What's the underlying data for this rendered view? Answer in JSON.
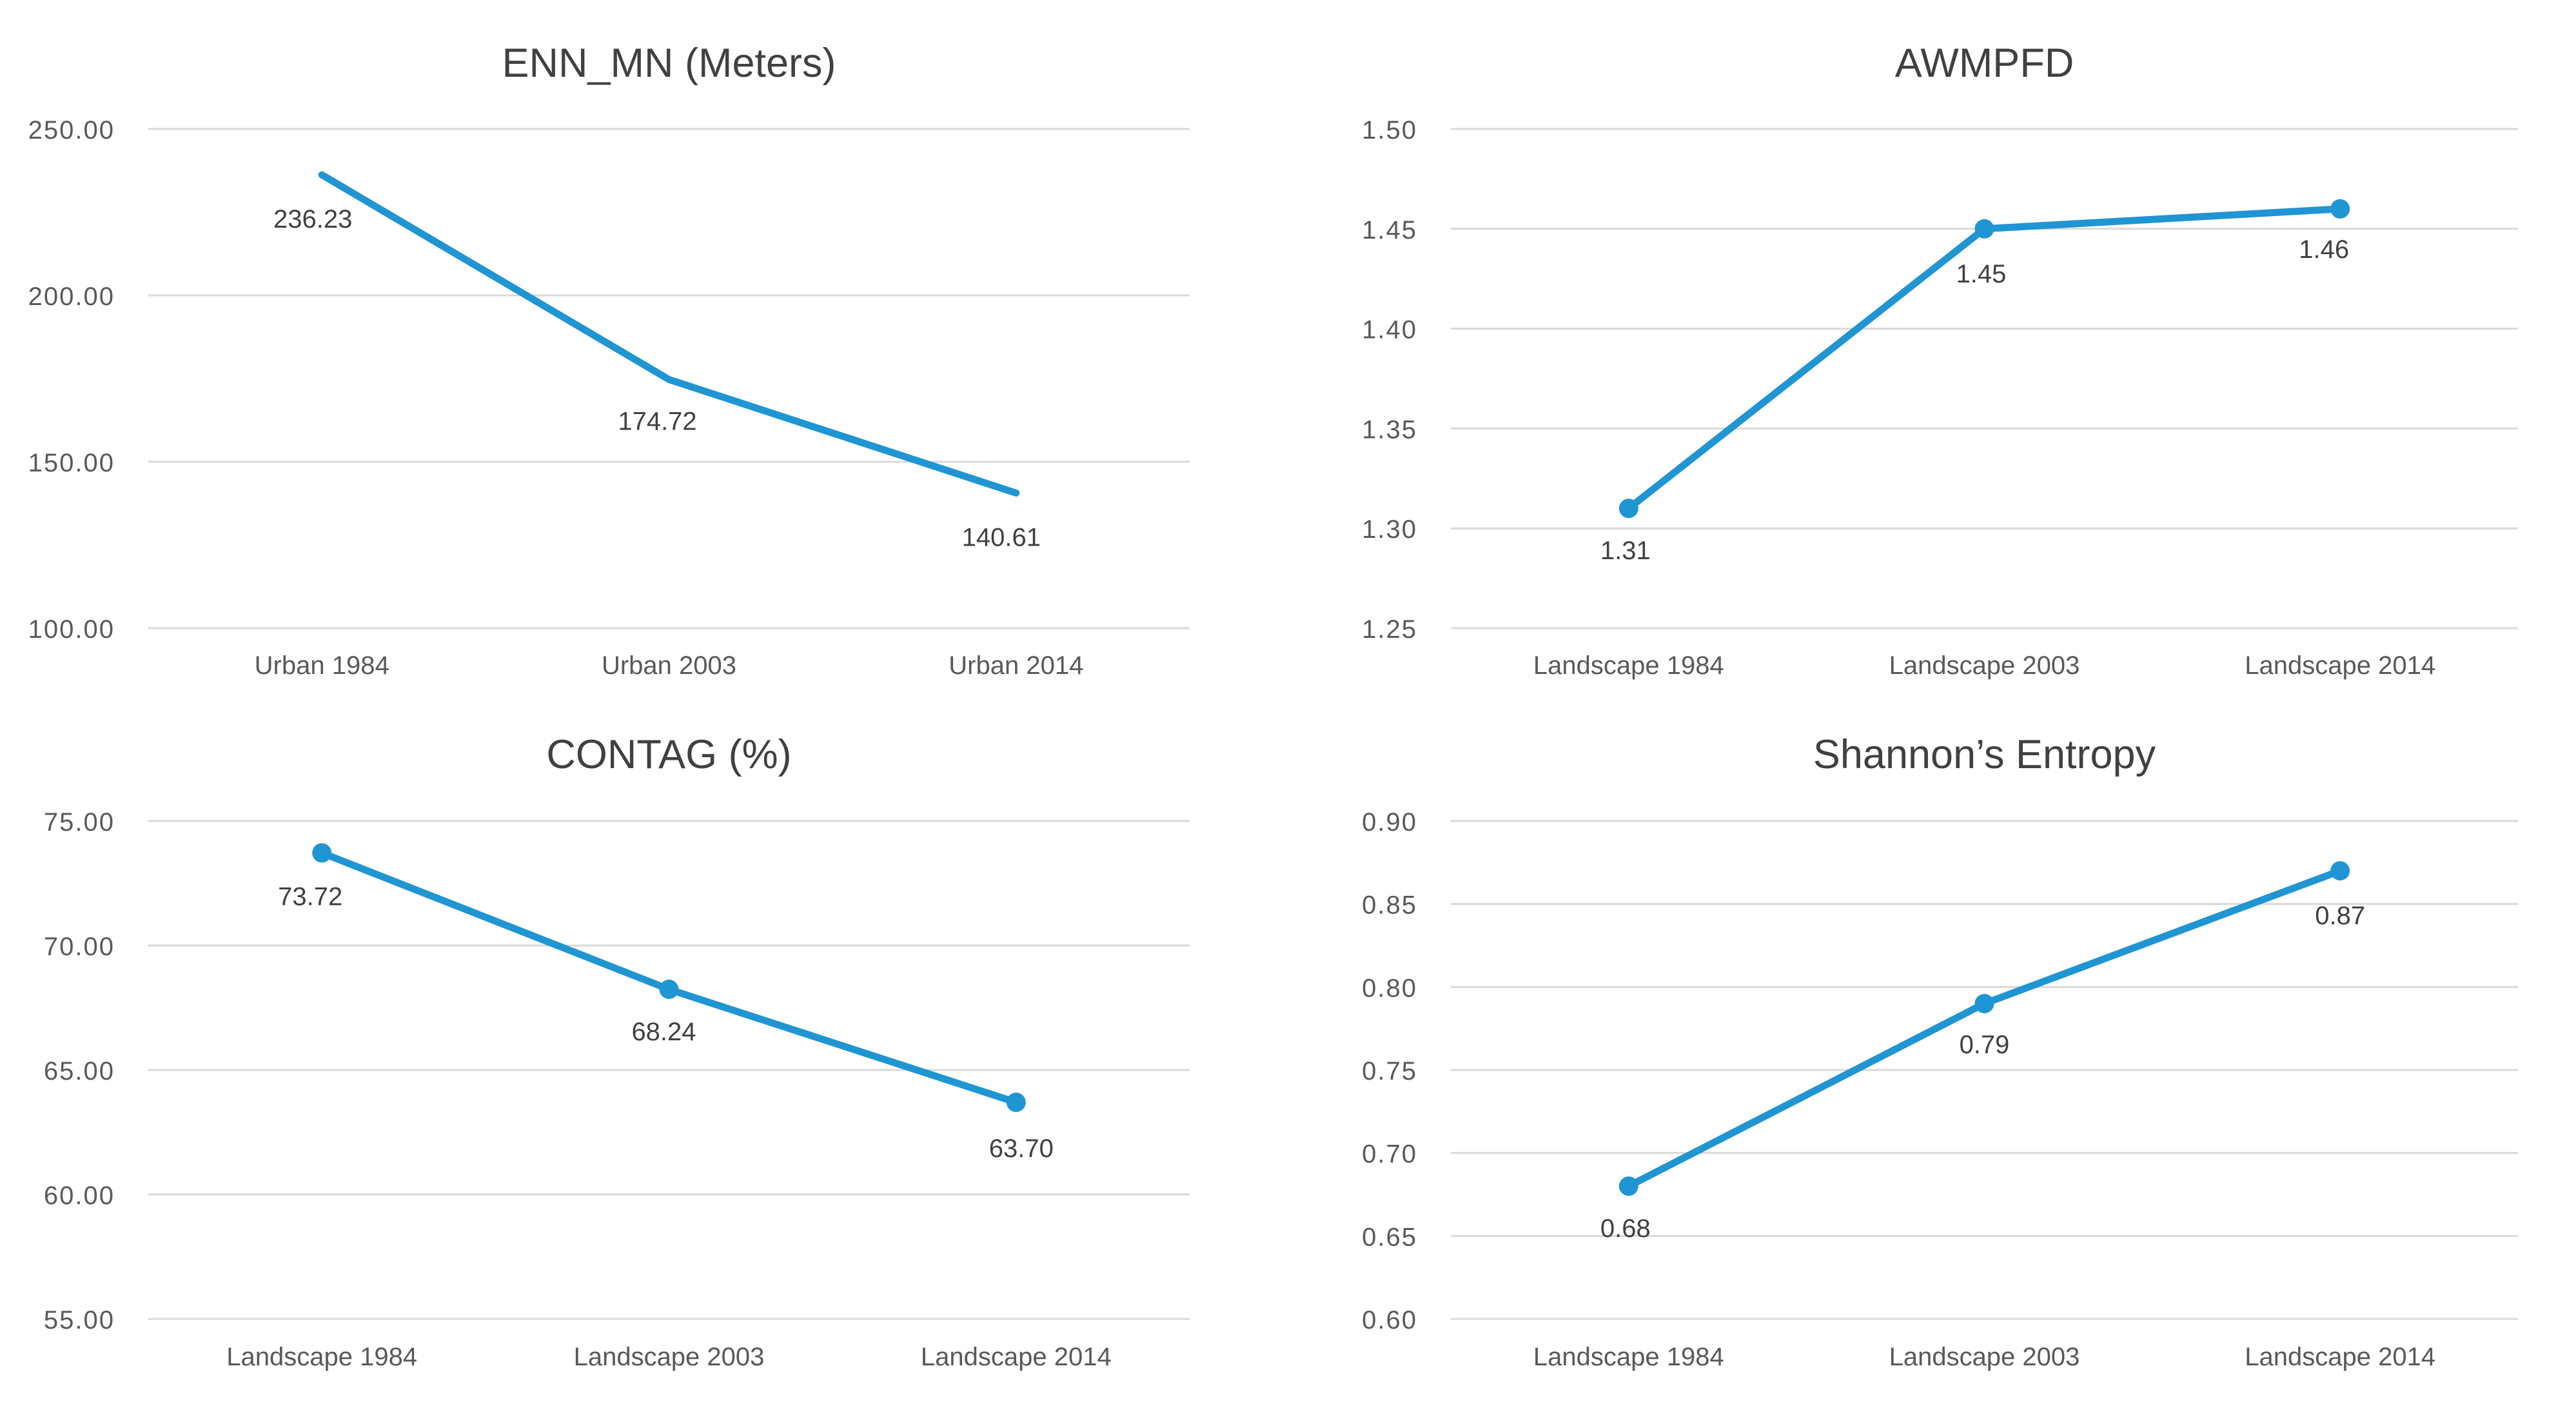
{
  "page_title": "Landscape metrics line charts",
  "colors": {
    "line": "#2095d3",
    "marker": "#2095d3",
    "grid": "#d9d9d9",
    "tick_text": "#595959",
    "category_text": "#595959",
    "title_text": "#404040",
    "data_label_text": "#404040",
    "background": "#ffffff"
  },
  "chart_data": [
    {
      "type": "line",
      "title": "ENN_MN (Meters)",
      "categories": [
        "Urban 1984",
        "Urban 2003",
        "Urban 2014"
      ],
      "values": [
        236.23,
        174.72,
        140.61
      ],
      "data_labels": [
        "236.23",
        "174.72",
        "140.61"
      ],
      "y_ticks": [
        "250.00",
        "200.00",
        "150.00",
        "100.00"
      ],
      "ylim": [
        100,
        250
      ],
      "markers": false,
      "grid": true,
      "legend": "none"
    },
    {
      "type": "line",
      "title": "AWMPFD",
      "categories": [
        "Landscape 1984",
        "Landscape 2003",
        "Landscape 2014"
      ],
      "values": [
        1.31,
        1.45,
        1.46
      ],
      "data_labels": [
        "1.31",
        "1.45",
        "1.46"
      ],
      "y_ticks": [
        "1.50",
        "1.45",
        "1.40",
        "1.35",
        "1.30",
        "1.25"
      ],
      "ylim": [
        1.25,
        1.5
      ],
      "markers": true,
      "grid": true,
      "legend": "none"
    },
    {
      "type": "line",
      "title": "CONTAG (%)",
      "categories": [
        "Landscape 1984",
        "Landscape 2003",
        "Landscape 2014"
      ],
      "values": [
        73.72,
        68.24,
        63.7
      ],
      "data_labels": [
        "73.72",
        "68.24",
        "63.70"
      ],
      "y_ticks": [
        "75.00",
        "70.00",
        "65.00",
        "60.00",
        "55.00"
      ],
      "ylim": [
        55,
        75
      ],
      "markers": true,
      "grid": true,
      "legend": "none"
    },
    {
      "type": "line",
      "title": "Shannon’s Entropy",
      "categories": [
        "Landscape 1984",
        "Landscape 2003",
        "Landscape 2014"
      ],
      "values": [
        0.68,
        0.79,
        0.87
      ],
      "data_labels": [
        "0.68",
        "0.79",
        "0.87"
      ],
      "y_ticks": [
        "0.90",
        "0.85",
        "0.80",
        "0.75",
        "0.70",
        "0.65",
        "0.60"
      ],
      "ylim": [
        0.6,
        0.9
      ],
      "markers": true,
      "grid": true,
      "legend": "none"
    }
  ]
}
